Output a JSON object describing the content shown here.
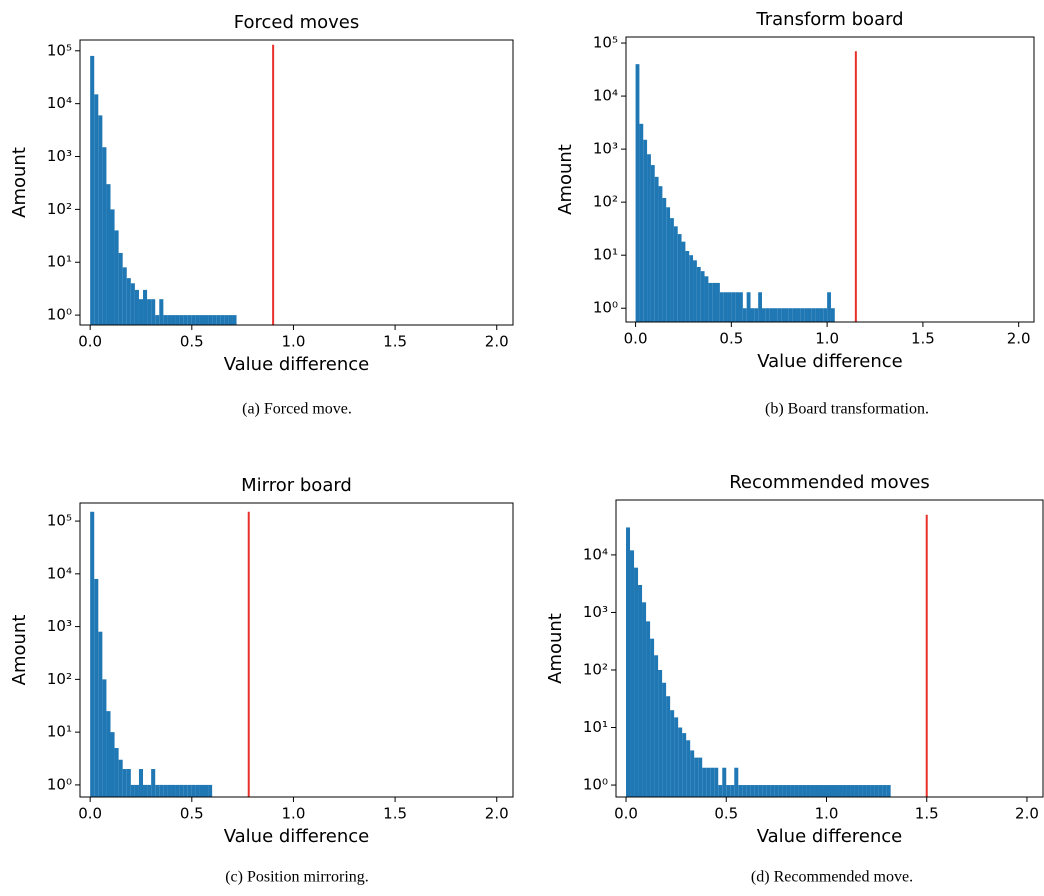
{
  "chart_data": [
    {
      "type": "histogram",
      "title": "Forced moves",
      "xlabel": "Value difference",
      "ylabel": "Amount",
      "caption": "(a) Forced move.",
      "color": "#1f77b4",
      "log_y": true,
      "bins": [
        0,
        0.02,
        0.04,
        0.06,
        0.08,
        0.1,
        0.12,
        0.14,
        0.16,
        0.18,
        0.2,
        0.22,
        0.24,
        0.26,
        0.28,
        0.3,
        0.32,
        0.34,
        0.36,
        0.38,
        0.4,
        0.42,
        0.44,
        0.46,
        0.48,
        0.5,
        0.52,
        0.54,
        0.56,
        0.58,
        0.6,
        0.62,
        0.64,
        0.66,
        0.68,
        0.7,
        0.72
      ],
      "values": [
        80000,
        15000,
        6000,
        1500,
        300,
        100,
        40,
        15,
        8,
        5,
        4,
        3,
        2,
        3,
        2,
        2,
        1,
        2,
        1,
        1,
        1,
        1,
        1,
        1,
        1,
        1,
        1,
        1,
        1,
        1,
        1,
        1,
        1,
        1,
        1,
        1
      ],
      "xlim": [
        -0.05,
        2.08
      ],
      "xticks": [
        {
          "value": 0,
          "label": "0.0"
        },
        0.5,
        {
          "value": 1,
          "label": "1.0"
        },
        1.5,
        {
          "value": 2,
          "label": "2.0"
        }
      ],
      "ylim": [
        0.65,
        160000
      ],
      "yticks": [
        {
          "value": 1,
          "label": "10⁰"
        },
        {
          "value": 10,
          "label": "10¹"
        },
        {
          "value": 100,
          "label": "10²"
        },
        {
          "value": 1000,
          "label": "10³"
        },
        {
          "value": 10000,
          "label": "10⁴"
        },
        {
          "value": 100000,
          "label": "10⁵"
        }
      ],
      "threshold": {
        "x": 0.9,
        "height": 130000,
        "color": "#e8302a"
      }
    },
    {
      "type": "histogram",
      "title": "Transform board",
      "xlabel": "Value difference",
      "ylabel": "Amount",
      "caption": "(b) Board transformation.",
      "color": "#1f77b4",
      "log_y": true,
      "bins": [
        0,
        0.02,
        0.04,
        0.06,
        0.08,
        0.1,
        0.12,
        0.14,
        0.16,
        0.18,
        0.2,
        0.22,
        0.24,
        0.26,
        0.28,
        0.3,
        0.32,
        0.34,
        0.36,
        0.38,
        0.4,
        0.42,
        0.44,
        0.46,
        0.48,
        0.5,
        0.52,
        0.54,
        0.56,
        0.58,
        0.6,
        0.62,
        0.64,
        0.66,
        0.68,
        0.7,
        0.72,
        0.74,
        0.76,
        0.78,
        0.8,
        0.82,
        0.84,
        0.86,
        0.88,
        0.9,
        0.92,
        0.94,
        0.96,
        0.98,
        1.0,
        1.02,
        1.04
      ],
      "values": [
        40000,
        3000,
        1500,
        800,
        500,
        300,
        200,
        120,
        80,
        50,
        35,
        25,
        18,
        12,
        10,
        8,
        6,
        5,
        4,
        3,
        3,
        3,
        2,
        2,
        2,
        2,
        2,
        2,
        1,
        2,
        1,
        1,
        2,
        1,
        1,
        1,
        1,
        1,
        1,
        1,
        1,
        1,
        1,
        1,
        1,
        1,
        1,
        1,
        1,
        1,
        2,
        1
      ],
      "xlim": [
        -0.05,
        2.08
      ],
      "xticks": [
        {
          "value": 0,
          "label": "0.0"
        },
        0.5,
        {
          "value": 1,
          "label": "1.0"
        },
        1.5,
        {
          "value": 2,
          "label": "2.0"
        }
      ],
      "ylim": [
        0.55,
        130000
      ],
      "yticks": [
        {
          "value": 1,
          "label": "10⁰"
        },
        {
          "value": 10,
          "label": "10¹"
        },
        {
          "value": 100,
          "label": "10²"
        },
        {
          "value": 1000,
          "label": "10³"
        },
        {
          "value": 10000,
          "label": "10⁴"
        },
        {
          "value": 100000,
          "label": "10⁵"
        }
      ],
      "threshold": {
        "x": 1.15,
        "height": 70000,
        "color": "#e8302a"
      }
    },
    {
      "type": "histogram",
      "title": "Mirror board",
      "xlabel": "Value difference",
      "ylabel": "Amount",
      "caption": "(c) Position mirroring.",
      "color": "#1f77b4",
      "log_y": true,
      "bins": [
        0,
        0.02,
        0.04,
        0.06,
        0.08,
        0.1,
        0.12,
        0.14,
        0.16,
        0.18,
        0.2,
        0.22,
        0.24,
        0.26,
        0.28,
        0.3,
        0.32,
        0.34,
        0.36,
        0.38,
        0.4,
        0.42,
        0.44,
        0.46,
        0.48,
        0.5,
        0.52,
        0.54,
        0.56,
        0.58,
        0.6
      ],
      "values": [
        150000,
        8000,
        800,
        100,
        25,
        10,
        5,
        3,
        2,
        2,
        1,
        1,
        2,
        1,
        1,
        2,
        1,
        1,
        1,
        1,
        1,
        1,
        1,
        1,
        1,
        1,
        1,
        1,
        1,
        1
      ],
      "xlim": [
        -0.05,
        2.08
      ],
      "xticks": [
        {
          "value": 0,
          "label": "0.0"
        },
        0.5,
        {
          "value": 1,
          "label": "1.0"
        },
        1.5,
        {
          "value": 2,
          "label": "2.0"
        }
      ],
      "ylim": [
        0.59,
        220000
      ],
      "yticks": [
        {
          "value": 1,
          "label": "10⁰"
        },
        {
          "value": 10,
          "label": "10¹"
        },
        {
          "value": 100,
          "label": "10²"
        },
        {
          "value": 1000,
          "label": "10³"
        },
        {
          "value": 10000,
          "label": "10⁴"
        },
        {
          "value": 100000,
          "label": "10⁵"
        }
      ],
      "threshold": {
        "x": 0.78,
        "height": 150000,
        "color": "#e8302a"
      }
    },
    {
      "type": "histogram",
      "title": "Recommended moves",
      "xlabel": "Value difference",
      "ylabel": "Amount",
      "caption": "(d) Recommended move.",
      "color": "#1f77b4",
      "log_y": true,
      "bins": [
        0,
        0.02,
        0.04,
        0.06,
        0.08,
        0.1,
        0.12,
        0.14,
        0.16,
        0.18,
        0.2,
        0.22,
        0.24,
        0.26,
        0.28,
        0.3,
        0.32,
        0.34,
        0.36,
        0.38,
        0.4,
        0.42,
        0.44,
        0.46,
        0.48,
        0.5,
        0.52,
        0.54,
        0.56,
        0.58,
        0.6,
        0.62,
        0.64,
        0.66,
        0.68,
        0.7,
        0.72,
        0.74,
        0.76,
        0.78,
        0.8,
        0.82,
        0.84,
        0.86,
        0.88,
        0.9,
        0.92,
        0.94,
        0.96,
        0.98,
        1.0,
        1.02,
        1.04,
        1.06,
        1.08,
        1.1,
        1.12,
        1.14,
        1.16,
        1.18,
        1.2,
        1.22,
        1.24,
        1.26,
        1.28,
        1.3,
        1.32
      ],
      "values": [
        30000,
        12000,
        6000,
        3000,
        1500,
        700,
        350,
        180,
        100,
        60,
        35,
        20,
        15,
        10,
        8,
        6,
        4,
        3,
        3,
        2,
        2,
        2,
        2,
        1,
        2,
        1,
        1,
        2,
        1,
        1,
        1,
        1,
        1,
        1,
        1,
        1,
        1,
        1,
        1,
        1,
        1,
        1,
        1,
        1,
        1,
        1,
        1,
        1,
        1,
        1,
        1,
        1,
        1,
        1,
        1,
        1,
        1,
        1,
        1,
        1,
        1,
        1,
        1,
        1,
        1,
        1
      ],
      "xlim": [
        -0.05,
        2.08
      ],
      "xticks": [
        {
          "value": 0,
          "label": "0.0"
        },
        0.5,
        {
          "value": 1,
          "label": "1.0"
        },
        1.5,
        {
          "value": 2,
          "label": "2.0"
        }
      ],
      "ylim": [
        0.62,
        90000
      ],
      "yticks": [
        {
          "value": 1,
          "label": "10⁰"
        },
        {
          "value": 10,
          "label": "10¹"
        },
        {
          "value": 100,
          "label": "10²"
        },
        {
          "value": 1000,
          "label": "10³"
        },
        {
          "value": 10000,
          "label": "10⁴"
        }
      ],
      "threshold": {
        "x": 1.5,
        "height": 50000,
        "color": "#e8302a"
      }
    }
  ]
}
